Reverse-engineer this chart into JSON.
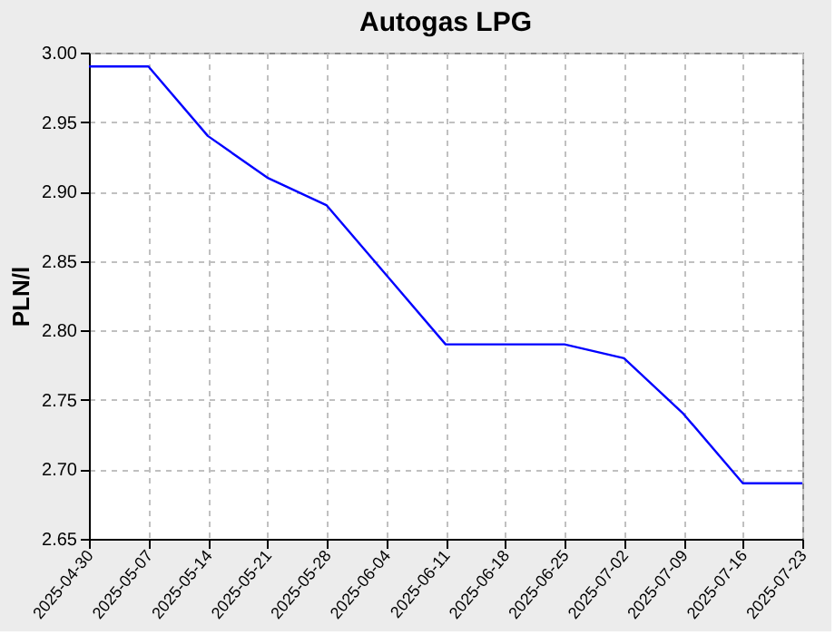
{
  "chart_data": {
    "type": "line",
    "title": "Autogas LPG",
    "ylabel": "PLN/l",
    "categories": [
      "2025-04-30",
      "2025-05-07",
      "2025-05-14",
      "2025-05-21",
      "2025-05-28",
      "2025-06-04",
      "2025-06-11",
      "2025-06-18",
      "2025-06-25",
      "2025-07-02",
      "2025-07-09",
      "2025-07-16",
      "2025-07-23"
    ],
    "series": [
      {
        "color": "#0000ff",
        "values": [
          2.99,
          2.99,
          2.94,
          2.91,
          2.89,
          2.84,
          2.79,
          2.79,
          2.79,
          2.78,
          2.74,
          2.69,
          2.69
        ]
      }
    ],
    "ylim": [
      2.65,
      3.0
    ],
    "yticks": [
      {
        "value": 2.65,
        "label": "2.65"
      },
      {
        "value": 2.7,
        "label": "2.70"
      },
      {
        "value": 2.75,
        "label": "2.75"
      },
      {
        "value": 2.8,
        "label": "2.80"
      },
      {
        "value": 2.85,
        "label": "2.85"
      },
      {
        "value": 2.9,
        "label": "2.90"
      },
      {
        "value": 2.95,
        "label": "2.95"
      },
      {
        "value": 3.0,
        "label": "3.00"
      }
    ],
    "grid": true,
    "marker": "none",
    "line_style": "solid"
  }
}
